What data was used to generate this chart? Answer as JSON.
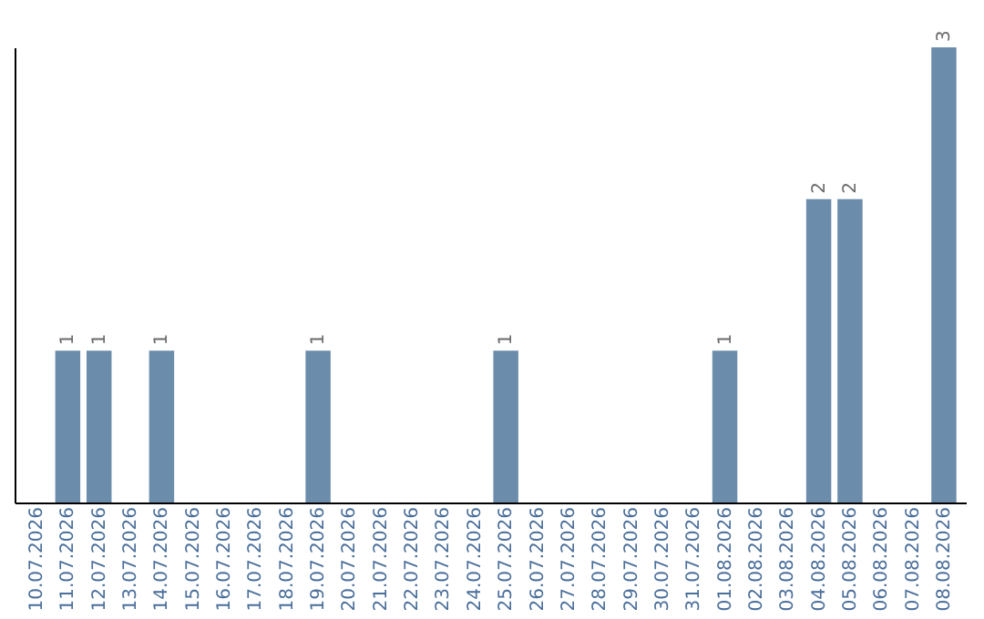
{
  "chart_data": {
    "type": "bar",
    "categories": [
      "10.07.2026",
      "11.07.2026",
      "12.07.2026",
      "13.07.2026",
      "14.07.2026",
      "15.07.2026",
      "16.07.2026",
      "17.07.2026",
      "18.07.2026",
      "19.07.2026",
      "20.07.2026",
      "21.07.2026",
      "22.07.2026",
      "23.07.2026",
      "24.07.2026",
      "25.07.2026",
      "26.07.2026",
      "27.07.2026",
      "28.07.2026",
      "29.07.2026",
      "30.07.2026",
      "31.07.2026",
      "01.08.2026",
      "02.08.2026",
      "03.08.2026",
      "04.08.2026",
      "05.08.2026",
      "06.08.2026",
      "07.08.2026",
      "08.08.2026"
    ],
    "values": [
      0,
      1,
      1,
      0,
      1,
      0,
      0,
      0,
      0,
      1,
      0,
      0,
      0,
      0,
      0,
      1,
      0,
      0,
      0,
      0,
      0,
      0,
      1,
      0,
      0,
      2,
      2,
      0,
      0,
      3
    ],
    "value_labels": [
      null,
      "1",
      "1",
      null,
      "1",
      null,
      null,
      null,
      null,
      "1",
      null,
      null,
      null,
      null,
      null,
      "1",
      null,
      null,
      null,
      null,
      null,
      null,
      "1",
      null,
      null,
      "2",
      "2",
      null,
      null,
      "3"
    ],
    "color": "#6b8cab",
    "tick_labels": "x",
    "grid": false
  }
}
